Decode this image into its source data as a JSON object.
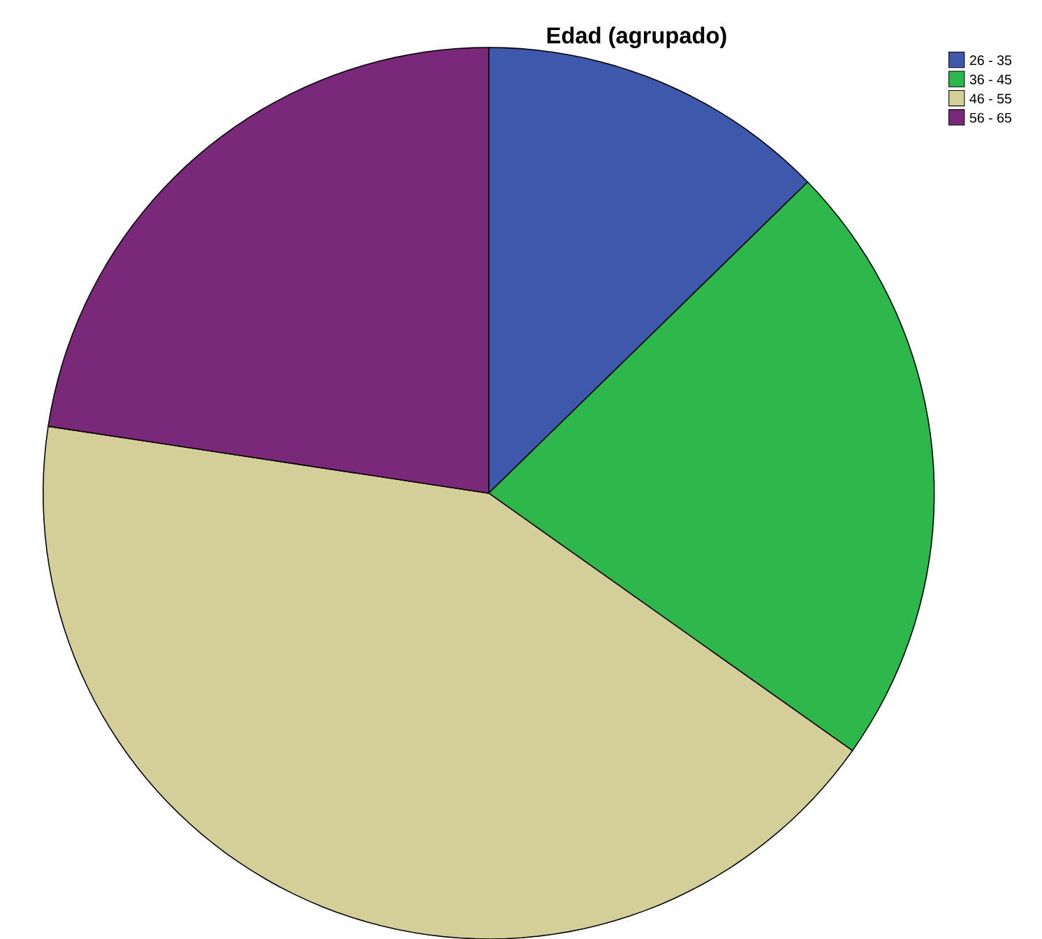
{
  "chart_data": {
    "type": "pie",
    "title": "Edad (agrupado)",
    "categories": [
      "26 - 35",
      "36 - 45",
      "46 - 55",
      "56 - 65"
    ],
    "values": [
      12.7,
      22.1,
      42.6,
      22.6
    ],
    "colors": [
      "#3e58ac",
      "#2eb84b",
      "#d4ce99",
      "#7a2879"
    ],
    "legend": "top right"
  }
}
